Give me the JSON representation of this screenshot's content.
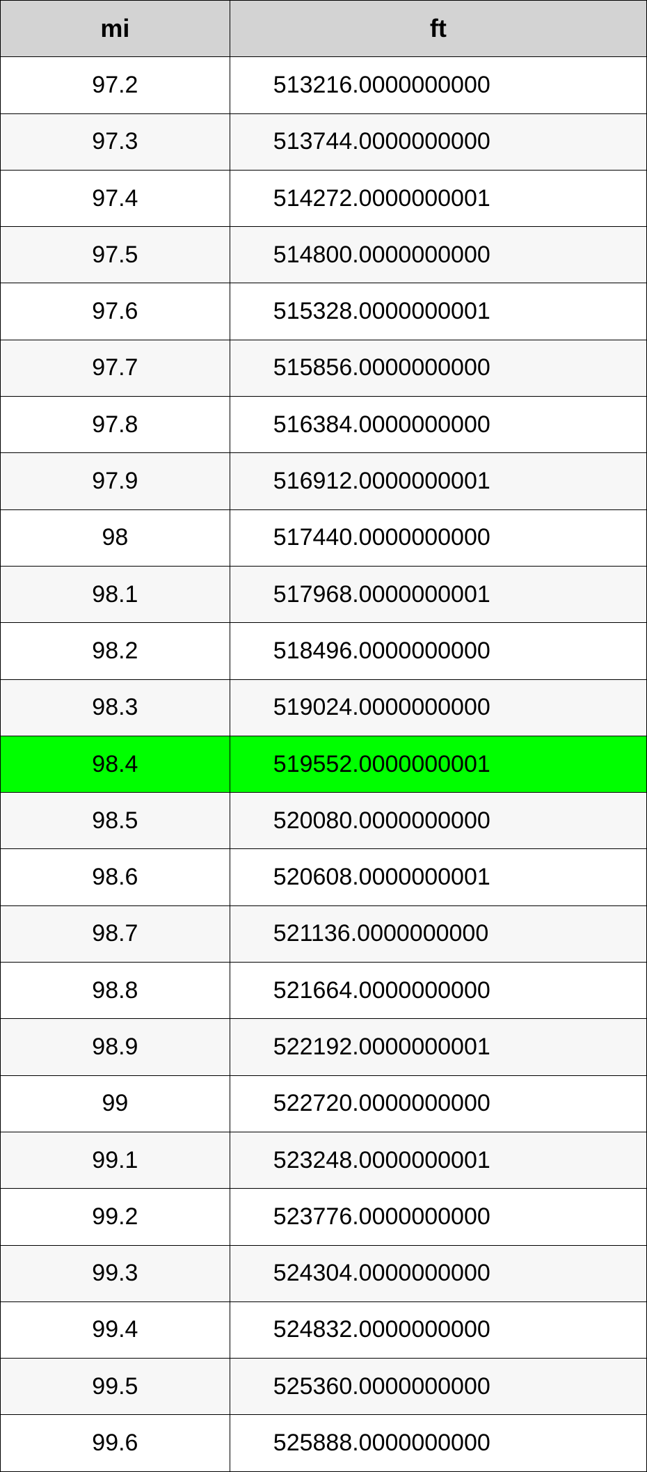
{
  "conversion_table": {
    "type": "table",
    "columns": [
      {
        "label": "mi",
        "align": "center",
        "key": "mi"
      },
      {
        "label": "ft",
        "align": "left",
        "key": "ft"
      }
    ],
    "header_bg": "#d3d3d3",
    "row_bg_even": "#ffffff",
    "row_bg_odd": "#f7f7f7",
    "highlight_bg": "#00ff00",
    "border_color": "#000000",
    "font_family": "Arial",
    "header_fontsize": 36,
    "cell_fontsize": 34,
    "col_widths_pct": [
      35.5,
      64.5
    ],
    "highlighted_index": 12,
    "rows": [
      {
        "mi": "97.2",
        "ft": "513216.0000000000"
      },
      {
        "mi": "97.3",
        "ft": "513744.0000000000"
      },
      {
        "mi": "97.4",
        "ft": "514272.0000000001"
      },
      {
        "mi": "97.5",
        "ft": "514800.0000000000"
      },
      {
        "mi": "97.6",
        "ft": "515328.0000000001"
      },
      {
        "mi": "97.7",
        "ft": "515856.0000000000"
      },
      {
        "mi": "97.8",
        "ft": "516384.0000000000"
      },
      {
        "mi": "97.9",
        "ft": "516912.0000000001"
      },
      {
        "mi": "98",
        "ft": "517440.0000000000"
      },
      {
        "mi": "98.1",
        "ft": "517968.0000000001"
      },
      {
        "mi": "98.2",
        "ft": "518496.0000000000"
      },
      {
        "mi": "98.3",
        "ft": "519024.0000000000"
      },
      {
        "mi": "98.4",
        "ft": "519552.0000000001"
      },
      {
        "mi": "98.5",
        "ft": "520080.0000000000"
      },
      {
        "mi": "98.6",
        "ft": "520608.0000000001"
      },
      {
        "mi": "98.7",
        "ft": "521136.0000000000"
      },
      {
        "mi": "98.8",
        "ft": "521664.0000000000"
      },
      {
        "mi": "98.9",
        "ft": "522192.0000000001"
      },
      {
        "mi": "99",
        "ft": "522720.0000000000"
      },
      {
        "mi": "99.1",
        "ft": "523248.0000000001"
      },
      {
        "mi": "99.2",
        "ft": "523776.0000000000"
      },
      {
        "mi": "99.3",
        "ft": "524304.0000000000"
      },
      {
        "mi": "99.4",
        "ft": "524832.0000000000"
      },
      {
        "mi": "99.5",
        "ft": "525360.0000000000"
      },
      {
        "mi": "99.6",
        "ft": "525888.0000000000"
      }
    ]
  }
}
